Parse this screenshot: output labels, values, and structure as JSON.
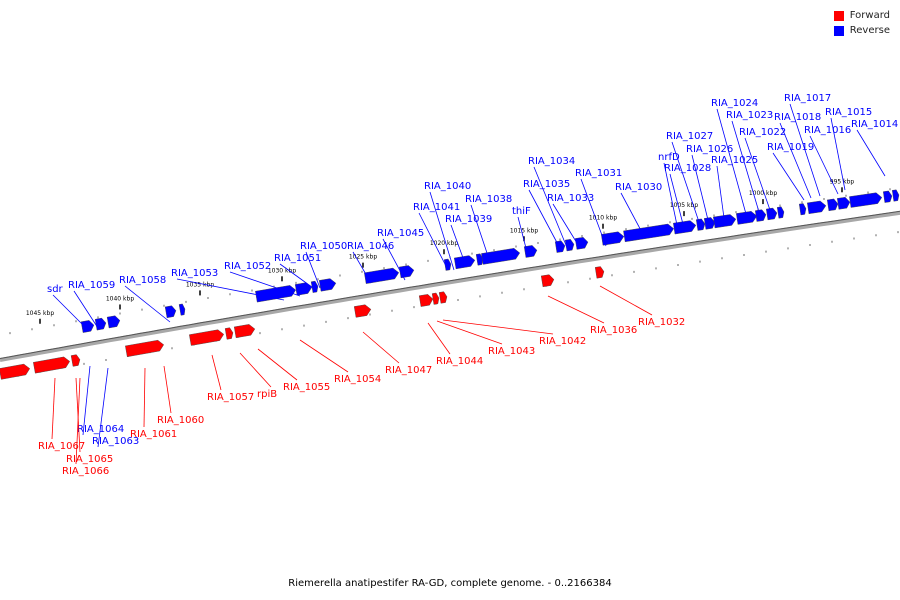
{
  "legend": [
    {
      "label": "Forward",
      "color": "#ff0000"
    },
    {
      "label": "Reverse",
      "color": "#0000ff"
    }
  ],
  "caption": "Riemerella anatipestifer RA-GD, complete genome. - 0..2166384",
  "colors": {
    "forward": "#ff0000",
    "reverse": "#0000ff",
    "backbone": "#a8a8a8"
  },
  "ticks": [
    "1045 kbp",
    "1040 kbp",
    "1035 kbp",
    "1030 kbp",
    "1025 kbp",
    "1020 kbp",
    "1015 kbp",
    "1010 kbp",
    "1005 kbp",
    "1000 kbp",
    "995 kbp"
  ],
  "reverse_labels": [
    "sdr",
    "RIA_1059",
    "RIA_1058",
    "RIA_1053",
    "RIA_1052",
    "RIA_1051",
    "RIA_1050",
    "RIA_1046",
    "RIA_1045",
    "RIA_1041",
    "RIA_1040",
    "RIA_1039",
    "RIA_1038",
    "thiF",
    "RIA_1035",
    "RIA_1034",
    "RIA_1033",
    "RIA_1031",
    "RIA_1030",
    "RIA_1028",
    "nrfD",
    "RIA_1027",
    "RIA_1026",
    "RIA_1025",
    "RIA_1024",
    "RIA_1023",
    "RIA_1022",
    "RIA_1019",
    "RIA_1018",
    "RIA_1017",
    "RIA_1016",
    "RIA_1015",
    "RIA_1014",
    "RIA_1064",
    "RIA_1063"
  ],
  "forward_labels": [
    "RIA_1067",
    "RIA_1065",
    "RIA_1066",
    "RIA_1061",
    "RIA_1060",
    "RIA_1057",
    "rpiB",
    "RIA_1055",
    "RIA_1054",
    "RIA_1047",
    "RIA_1044",
    "RIA_1043",
    "RIA_1042",
    "RIA_1036",
    "RIA_1032"
  ]
}
